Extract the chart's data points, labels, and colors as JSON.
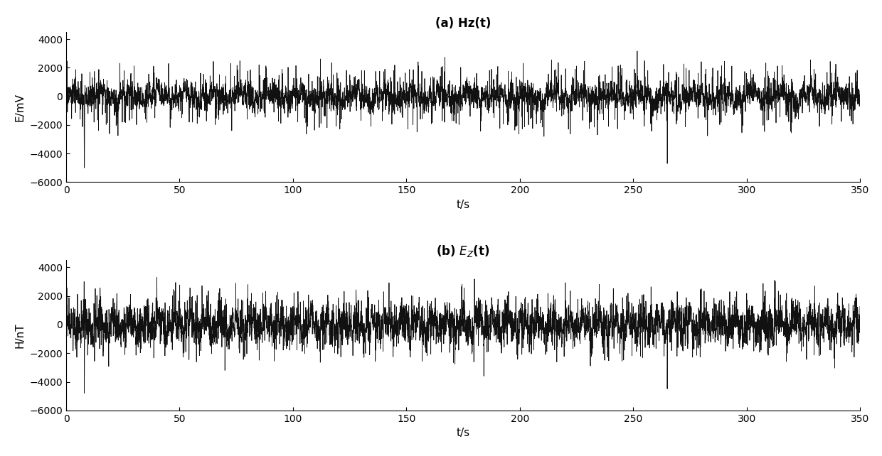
{
  "title_a": "(a) Hz(t)",
  "title_b": "(b) $E_Z$(t)",
  "xlabel": "t/s",
  "ylabel_a": "E/mV",
  "ylabel_b": "H/nT",
  "xlim": [
    0,
    350
  ],
  "ylim": [
    -6000,
    4500
  ],
  "yticks": [
    -6000,
    -4000,
    -2000,
    0,
    2000,
    4000
  ],
  "xticks": [
    0,
    50,
    100,
    150,
    200,
    250,
    300,
    350
  ],
  "line_color": "#111111",
  "line_width": 0.6,
  "bg_color": "#ffffff",
  "seed_a": 42,
  "seed_b": 77,
  "n_points": 7000,
  "t_max": 350,
  "title_fontsize": 12,
  "label_fontsize": 11,
  "tick_fontsize": 10
}
